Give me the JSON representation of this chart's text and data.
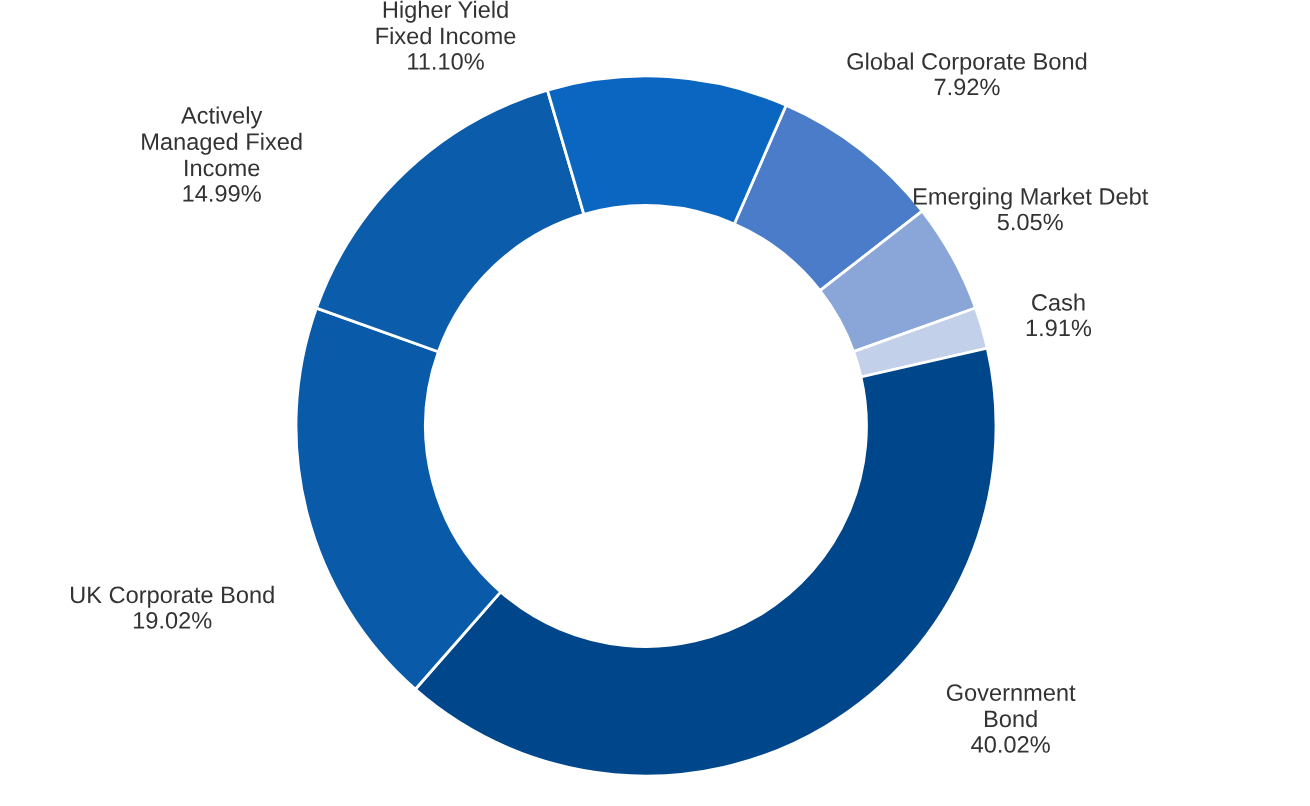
{
  "chart_data": {
    "type": "donut",
    "categories": [
      "Global Corporate Bond",
      "Emerging Market Debt",
      "Cash",
      "Government\nBond",
      "UK Corporate Bond",
      "Actively\nManaged Fixed\nIncome",
      "Higher Yield\nFixed Income"
    ],
    "values": [
      7.92,
      5.05,
      1.91,
      40.02,
      19.02,
      14.99,
      11.1
    ],
    "value_labels": [
      "7.92%",
      "5.05%",
      "1.91%",
      "40.02%",
      "19.02%",
      "14.99%",
      "11.10%"
    ],
    "colors": [
      "#4a7cc9",
      "#8aa6d9",
      "#c2d0ea",
      "#00468a",
      "#0a5aaa",
      "#0b5cab",
      "#0a66c0"
    ]
  }
}
